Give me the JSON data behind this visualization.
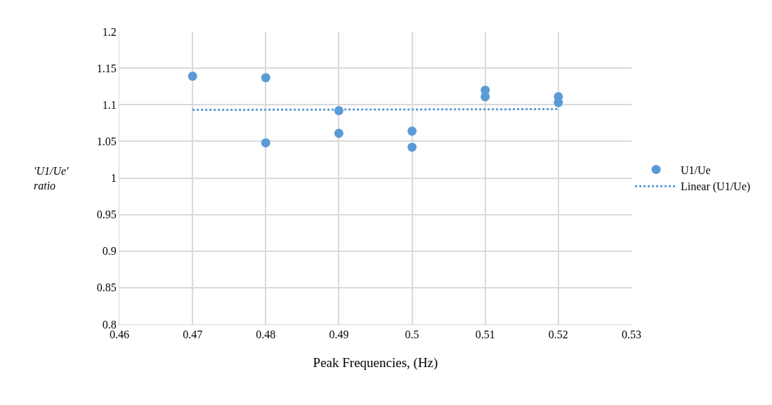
{
  "chart_data": {
    "type": "scatter",
    "xlabel": "Peak Frequencies, (Hz)",
    "ylabel": "'U1/Ue' ratio",
    "series": [
      {
        "name": "U1/Ue",
        "color": "#5b9bd5",
        "marker": "circle",
        "x": [
          0.47,
          0.48,
          0.48,
          0.49,
          0.49,
          0.5,
          0.5,
          0.51,
          0.51,
          0.52,
          0.52
        ],
        "values": [
          1.139,
          1.137,
          1.048,
          1.092,
          1.061,
          1.064,
          1.042,
          1.12,
          1.111,
          1.111,
          1.103
        ]
      },
      {
        "name": "Linear (U1/Ue)",
        "type": "line",
        "color": "#5b9bd5",
        "line_style": "dotted",
        "x": [
          0.47,
          0.52
        ],
        "values": [
          1.093,
          1.094
        ]
      }
    ],
    "xlim": [
      0.46,
      0.53
    ],
    "xticks": [
      0.46,
      0.47,
      0.48,
      0.49,
      0.5,
      0.51,
      0.52,
      0.53
    ],
    "ylim": [
      0.8,
      1.2
    ],
    "yticks": [
      0.8,
      0.85,
      0.9,
      0.95,
      1,
      1.05,
      1.1,
      1.15,
      1.2
    ],
    "grid": true,
    "legend": "right"
  }
}
